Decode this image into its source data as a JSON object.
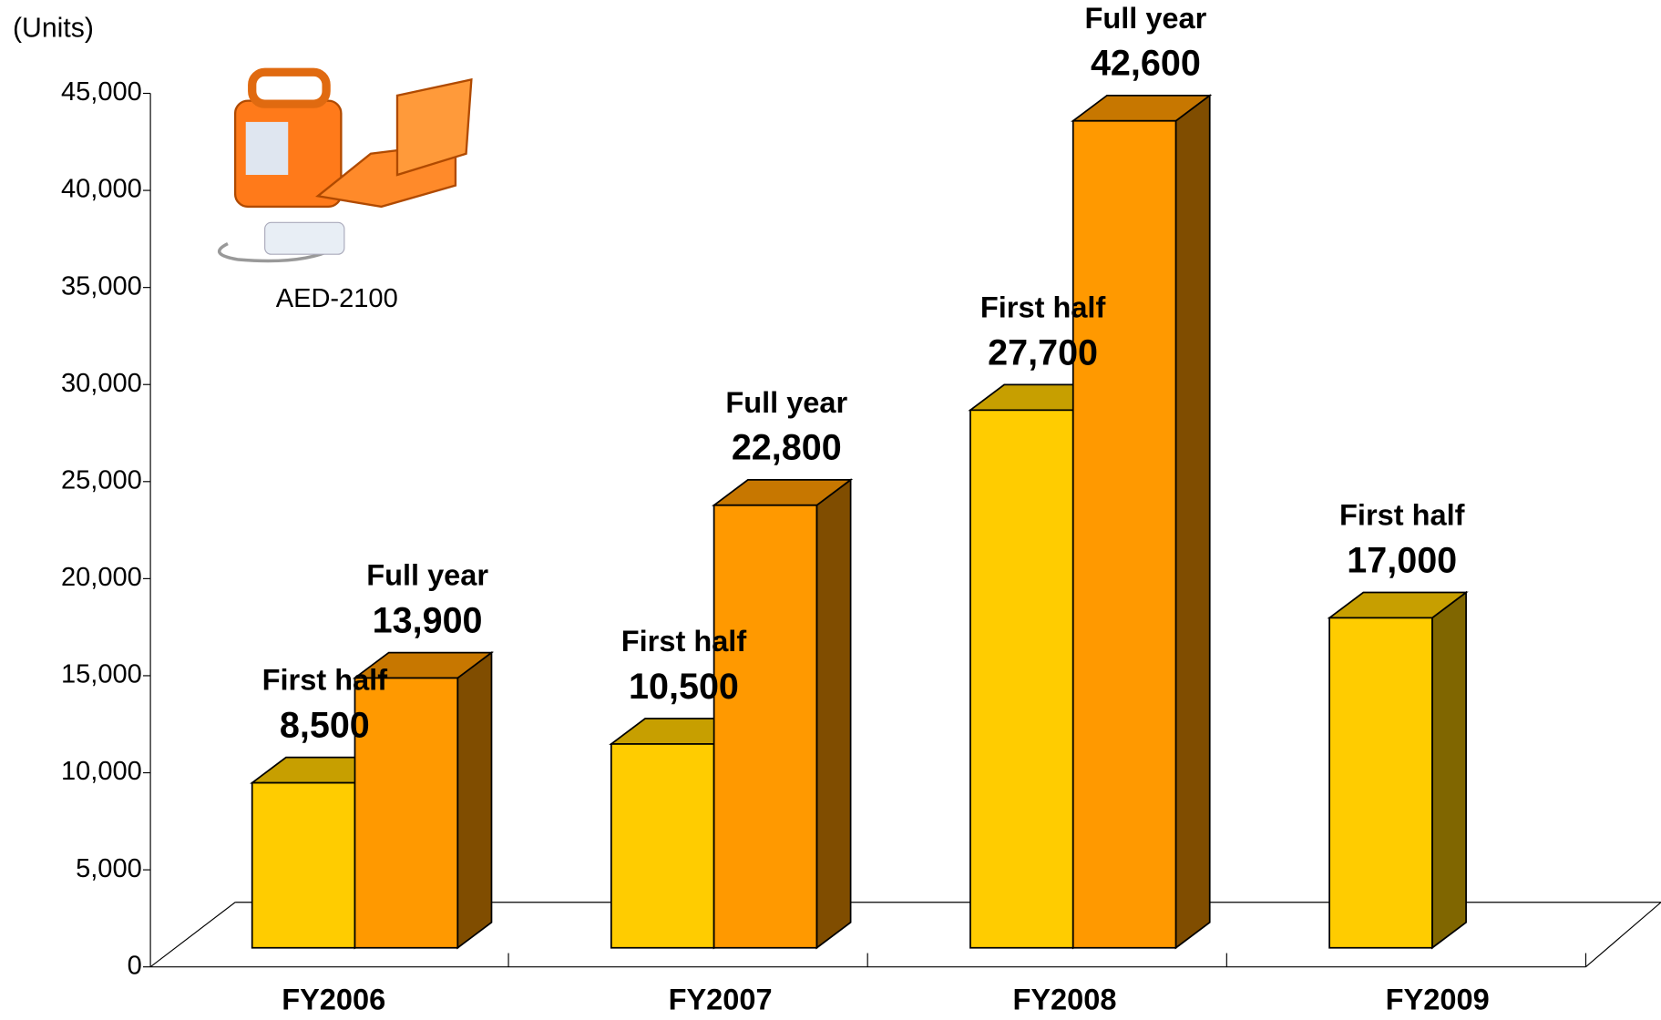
{
  "chart_data": {
    "type": "bar3d",
    "y_label": "(Units)",
    "annotation": "AED-2100",
    "categories": [
      "FY2006",
      "FY2007",
      "FY2008",
      "FY2009"
    ],
    "series": [
      {
        "name": "First half",
        "color": "#ffcc00",
        "values": [
          8500,
          10500,
          27700,
          17000
        ],
        "value_labels": [
          "8,500",
          "10,500",
          "27,700",
          "17,000"
        ]
      },
      {
        "name": "Full year",
        "color": "#ff9900",
        "values": [
          13900,
          22800,
          42600,
          null
        ],
        "value_labels": [
          "13,900",
          "22,800",
          "42,600",
          null
        ]
      }
    ],
    "ylim": [
      0,
      45000
    ],
    "yticks": [
      0,
      {
        "value": 5000,
        "label": "5,000"
      },
      {
        "value": 10000,
        "label": "10,000"
      },
      {
        "value": 15000,
        "label": "15,000"
      },
      {
        "value": 20000,
        "label": "20,000"
      },
      {
        "value": 25000,
        "label": "25,000"
      },
      {
        "value": 30000,
        "label": "30,000"
      },
      {
        "value": 35000,
        "label": "35,000"
      },
      {
        "value": 40000,
        "label": "40,000"
      },
      {
        "value": 45000,
        "label": "45,000"
      }
    ]
  }
}
